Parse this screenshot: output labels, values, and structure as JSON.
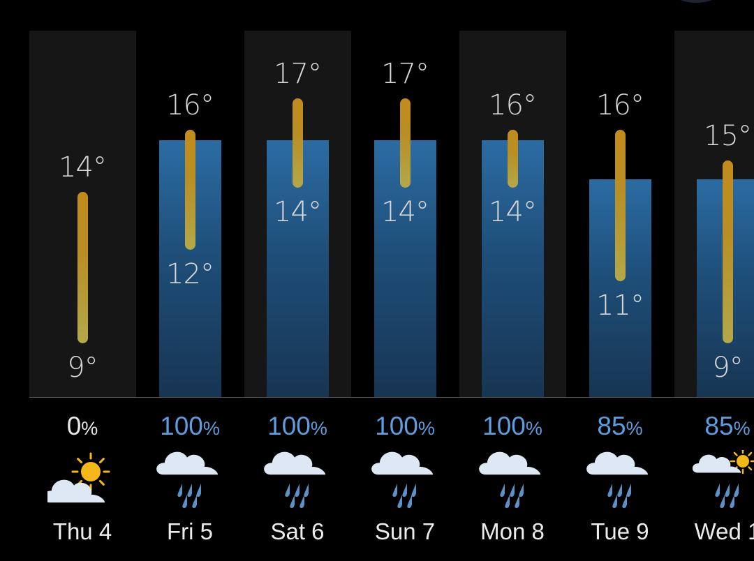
{
  "forecast": {
    "days": [
      {
        "label": "Thu 4",
        "high": "14°",
        "low": "9°",
        "precip_value": "0",
        "precip_unit": "%",
        "precip_percent": 0,
        "icon": "sun-behind-cloud-icon"
      },
      {
        "label": "Fri 5",
        "high": "16°",
        "low": "12°",
        "precip_value": "100",
        "precip_unit": "%",
        "precip_percent": 100,
        "icon": "rain-icon"
      },
      {
        "label": "Sat 6",
        "high": "17°",
        "low": "14°",
        "precip_value": "100",
        "precip_unit": "%",
        "precip_percent": 100,
        "icon": "rain-icon"
      },
      {
        "label": "Sun 7",
        "high": "17°",
        "low": "14°",
        "precip_value": "100",
        "precip_unit": "%",
        "precip_percent": 100,
        "icon": "rain-icon"
      },
      {
        "label": "Mon 8",
        "high": "16°",
        "low": "14°",
        "precip_value": "100",
        "precip_unit": "%",
        "precip_percent": 100,
        "icon": "rain-icon"
      },
      {
        "label": "Tue 9",
        "high": "16°",
        "low": "11°",
        "precip_value": "85",
        "precip_unit": "%",
        "precip_percent": 85,
        "icon": "rain-icon"
      },
      {
        "label": "Wed 1",
        "high": "15°",
        "low": "9°",
        "precip_value": "85",
        "precip_unit": "%",
        "precip_percent": 85,
        "icon": "sun-rain-icon"
      }
    ]
  },
  "colors": {
    "background": "#000000",
    "column_shade": "#161616",
    "rain_bar": "#2c6ca3",
    "temp_bar": "#c28c1c",
    "precip_text": "#5d9de0",
    "sun": "#f5b81a",
    "cloud": "#dde8f4",
    "raindrop": "#5b93c9"
  }
}
